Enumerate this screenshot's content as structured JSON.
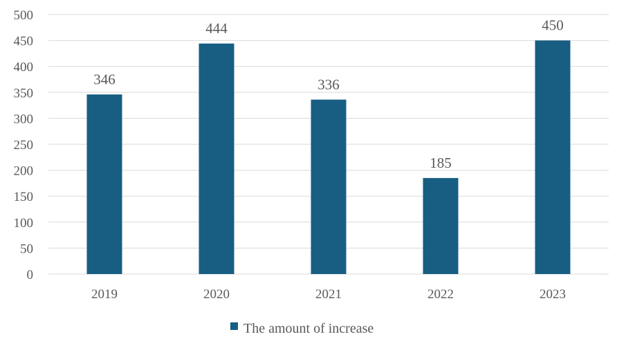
{
  "chart_data": {
    "type": "bar",
    "categories": [
      "2019",
      "2020",
      "2021",
      "2022",
      "2023"
    ],
    "series": [
      {
        "name": "The amount of increase",
        "values": [
          346,
          444,
          336,
          185,
          450
        ],
        "color": "#175e82"
      }
    ],
    "data_labels": [
      "346",
      "444",
      "336",
      "185",
      "450"
    ],
    "title": "",
    "xlabel": "",
    "ylabel": "",
    "ylim": [
      0,
      500
    ],
    "y_ticks": [
      "0",
      "50",
      "100",
      "150",
      "200",
      "250",
      "300",
      "350",
      "400",
      "450",
      "500"
    ],
    "grid": true,
    "legend_position": "bottom"
  }
}
